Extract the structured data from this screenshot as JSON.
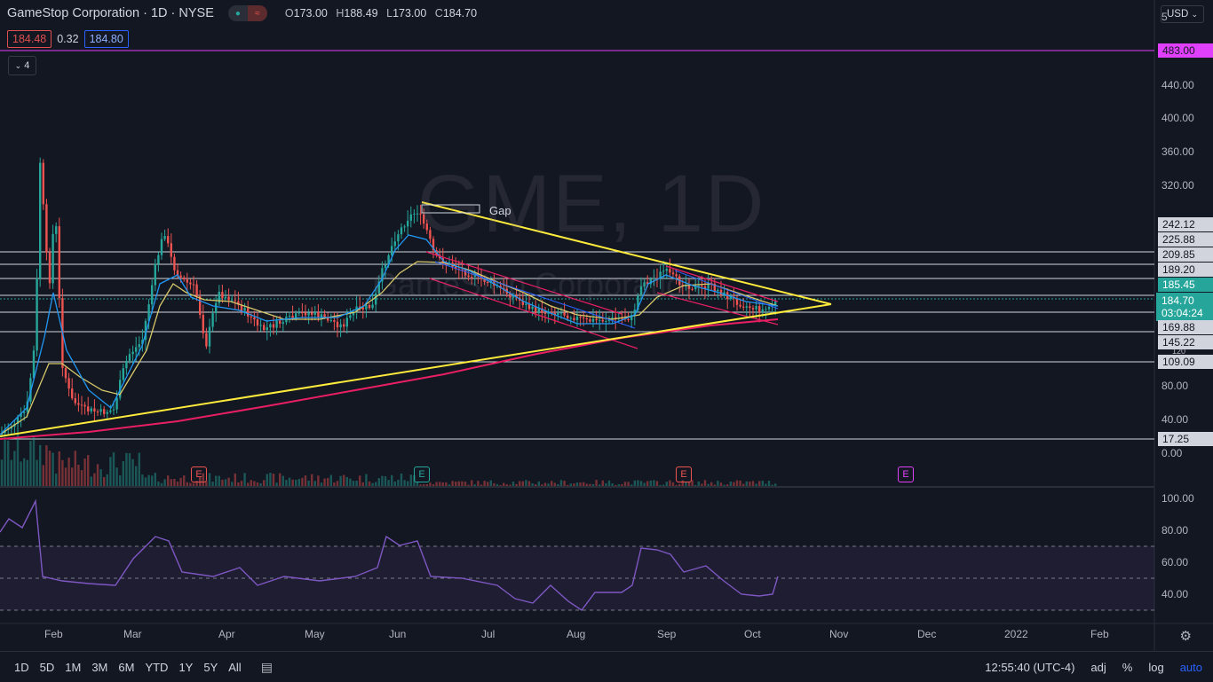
{
  "legend": {
    "symbol_title": "GameStop Corporation · 1D · NYSE",
    "ohlc": {
      "o_label": "O",
      "o": "173.00",
      "h_label": "H",
      "h": "188.49",
      "l_label": "L",
      "l": "173.00",
      "c_label": "C",
      "c": "184.70"
    },
    "bid": "184.48",
    "spread": "0.32",
    "ask": "184.80",
    "collapsed_count": "4"
  },
  "watermark": {
    "main": "GME, 1D",
    "sub": "GameStop Corporation"
  },
  "currency": "USD",
  "annotations": {
    "gap_label": "Gap"
  },
  "price_axis": {
    "ticks": [
      "440.00",
      "400.00",
      "360.00",
      "320.00",
      "80.00",
      "40.00",
      "0.00"
    ],
    "level_tags": [
      "483.00",
      "242.12",
      "225.88",
      "209.85",
      "189.20",
      "185.45",
      "169.88",
      "145.22",
      "109.09",
      "17.25"
    ],
    "partial_top": "5",
    "last_price": "184.70",
    "countdown": "03:04:24",
    "partial_120": "120"
  },
  "rsi_axis": {
    "ticks": [
      "100.00",
      "80.00",
      "60.00",
      "40.00"
    ]
  },
  "time_axis": {
    "labels": [
      "Feb",
      "Mar",
      "Apr",
      "May",
      "Jun",
      "Jul",
      "Aug",
      "Sep",
      "Oct",
      "Nov",
      "Dec",
      "2022",
      "Feb"
    ]
  },
  "events": {
    "earnings_1": "E",
    "earnings_2": "E",
    "earnings_3": "E",
    "earnings_next": "E"
  },
  "toolbar": {
    "timeframes": [
      "1D",
      "5D",
      "1M",
      "3M",
      "6M",
      "YTD",
      "1Y",
      "5Y",
      "All"
    ],
    "clock": "12:55:40 (UTC-4)",
    "adj": "adj",
    "percent": "%",
    "log": "log",
    "auto": "auto"
  },
  "colors": {
    "background": "#131722",
    "up": "#26a69a",
    "down": "#ef5350",
    "triangle": "#ffeb3b",
    "ma200": "#e91e63",
    "ma_blue": "#2196f3",
    "ma_yellow": "#ffeb3b",
    "rsi": "#7e57c2",
    "resistance": "#e040fb"
  },
  "icons": {
    "chevron": "chevron-down-icon",
    "gear": "gear-icon",
    "compare": "compare-icon",
    "eye": "eye-icon"
  }
}
